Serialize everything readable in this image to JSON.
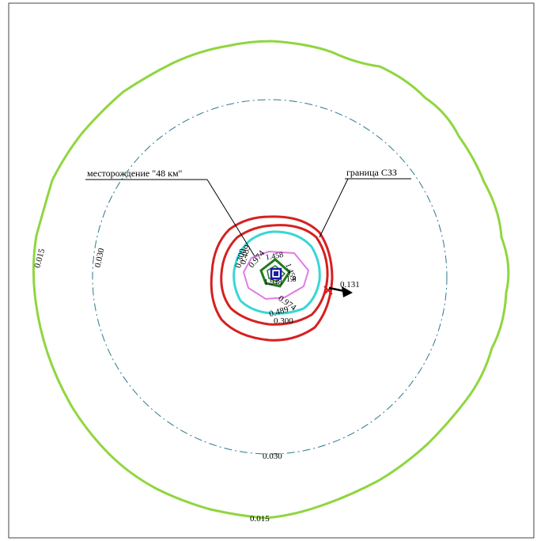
{
  "colors": {
    "outer_isoline": "#8fd63f",
    "dashdot_isoline": "#2b7a8a",
    "red_isoline": "#d62020",
    "cyan_isoline": "#38d6d6",
    "magenta_isoline": "#e07be6",
    "green_isoline": "#1f7a1f",
    "blue_isoline": "#1a1aa8",
    "leader_line": "#000000",
    "arrow": "#000000",
    "marker": "#d62020"
  },
  "labels": {
    "deposit": "месторождение \"48 км\"",
    "szz_boundary": "граница СЗЗ"
  },
  "isolines": {
    "outer_left": "0.015",
    "outer_bottom": "0.015",
    "dashdot_left": "0.030",
    "dashdot_bottom": "0.030",
    "red_left": "0.300",
    "red_bottom": "0.300",
    "cyan_left": "0.489",
    "cyan_bottom": "0.489",
    "magenta_left": "0.974",
    "magenta_bottom": "0.974",
    "inner_1": "1.458",
    "inner_2": "1.459",
    "inner_3": "1.948",
    "inner_4": "1.8",
    "point_value": "0.131"
  }
}
